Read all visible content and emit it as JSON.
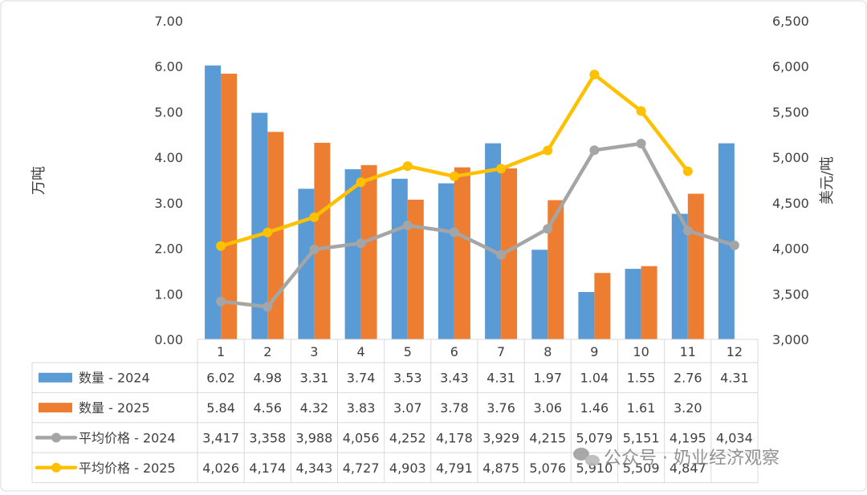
{
  "chart_data": {
    "type": "bar",
    "categories": [
      "1",
      "2",
      "3",
      "4",
      "5",
      "6",
      "7",
      "8",
      "9",
      "10",
      "11",
      "12"
    ],
    "ylabel_left": "万吨",
    "ylabel_right": "美元/吨",
    "ylim_left": [
      0,
      7
    ],
    "ylim_right": [
      3000,
      6500
    ],
    "yticks_left": [
      "0.00",
      "1.00",
      "2.00",
      "3.00",
      "4.00",
      "5.00",
      "6.00",
      "7.00"
    ],
    "yticks_right": [
      "3,000",
      "3,500",
      "4,000",
      "4,500",
      "5,000",
      "5,500",
      "6,000",
      "6,500"
    ],
    "grid": false,
    "legend": "data-table",
    "series": [
      {
        "name": "数量 - 2024",
        "kind": "bar",
        "axis": "left",
        "color": "#5B9BD5",
        "values": [
          6.02,
          4.98,
          3.31,
          3.74,
          3.53,
          3.43,
          4.31,
          1.97,
          1.04,
          1.55,
          2.76,
          4.31
        ],
        "labels": [
          "6.02",
          "4.98",
          "3.31",
          "3.74",
          "3.53",
          "3.43",
          "4.31",
          "1.97",
          "1.04",
          "1.55",
          "2.76",
          "4.31"
        ]
      },
      {
        "name": "数量 - 2025",
        "kind": "bar",
        "axis": "left",
        "color": "#ED7D31",
        "values": [
          5.84,
          4.56,
          4.32,
          3.83,
          3.07,
          3.78,
          3.76,
          3.06,
          1.46,
          1.61,
          3.2,
          null
        ],
        "labels": [
          "5.84",
          "4.56",
          "4.32",
          "3.83",
          "3.07",
          "3.78",
          "3.76",
          "3.06",
          "1.46",
          "1.61",
          "3.20",
          ""
        ]
      },
      {
        "name": "平均价格 - 2024",
        "kind": "line",
        "axis": "right",
        "color": "#A5A5A5",
        "values": [
          3417,
          3358,
          3988,
          4056,
          4252,
          4178,
          3929,
          4215,
          5079,
          5151,
          4195,
          4034
        ],
        "labels": [
          "3,417",
          "3,358",
          "3,988",
          "4,056",
          "4,252",
          "4,178",
          "3,929",
          "4,215",
          "5,079",
          "5,151",
          "4,195",
          "4,034"
        ]
      },
      {
        "name": "平均价格 - 2025",
        "kind": "line",
        "axis": "right",
        "color": "#FFC000",
        "values": [
          4026,
          4174,
          4343,
          4727,
          4903,
          4791,
          4875,
          5076,
          5910,
          5509,
          4847,
          null
        ],
        "labels": [
          "4,026",
          "4,174",
          "4,343",
          "4,727",
          "4,903",
          "4,791",
          "4,875",
          "5,076",
          "5,910",
          "5,509",
          "4,847",
          ""
        ]
      }
    ]
  },
  "watermark": {
    "text": "公众号 · 奶业经济观察"
  }
}
